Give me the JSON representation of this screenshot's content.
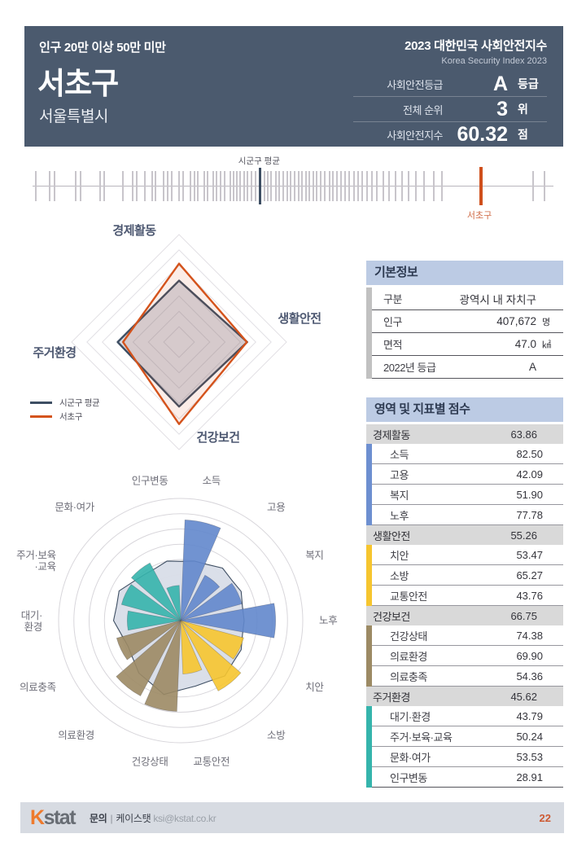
{
  "header": {
    "population_band": "인구 20만 이상 50만 미만",
    "report_title_ko": "2023 대한민국 사회안전지수",
    "report_title_en": "Korea Security Index 2023",
    "district": "서초구",
    "province": "서울특별시",
    "stats": [
      {
        "label": "사회안전등급",
        "value": "A",
        "unit": "등급"
      },
      {
        "label": "전체 순위",
        "value": "3",
        "unit": "위"
      },
      {
        "label": "사회안전지수",
        "value": "60.32",
        "unit": "점"
      }
    ]
  },
  "strip": {
    "avg_label": "시군구 평균",
    "district_label": "서초구",
    "avg_pos": 43.5,
    "district_pos": 85.8,
    "ticks": [
      0.4,
      3.2,
      4.0,
      8.2,
      9.0,
      12.8,
      13.6,
      17.2,
      19.0,
      19.8,
      21.4,
      22.8,
      23.5,
      25.0,
      25.8,
      26.5,
      28.0,
      28.8,
      30.2,
      30.9,
      31.6,
      32.8,
      33.5,
      34.6,
      35.2,
      36.0,
      36.7,
      37.8,
      38.4,
      39.0,
      39.7,
      40.5,
      41.1,
      41.9,
      42.6,
      44.3,
      45.0,
      45.7,
      46.5,
      47.2,
      48.0,
      48.8,
      49.4,
      50.1,
      50.9,
      51.6,
      52.4,
      53.0,
      53.7,
      54.4,
      55.2,
      56.0,
      56.8,
      57.5,
      58.3,
      59.0,
      59.8,
      60.6,
      61.5,
      62.3,
      63.1,
      64.0,
      65.0,
      66.0,
      67.2,
      68.3,
      69.5,
      70.8,
      72.0,
      73.5,
      75.0,
      76.8,
      78.5,
      96.0,
      98.2
    ]
  },
  "chart_data": [
    {
      "type": "radar",
      "categories": [
        "경제활동",
        "생활안전",
        "건강보건",
        "주거환경"
      ],
      "series": [
        {
          "name": "시군구 평균",
          "values": [
            50.0,
            55.5,
            52.5,
            50.0
          ],
          "color": "#3d4e63",
          "note": "estimated from pixels"
        },
        {
          "name": "서초구",
          "values": [
            63.86,
            55.26,
            66.75,
            45.62
          ],
          "color": "#d4531c"
        }
      ],
      "rmax": 87.5,
      "grid_levels": 7,
      "grid": "concentric diamonds, no radial lines",
      "legend_position": "bottom-left"
    },
    {
      "type": "polar-bar-rose",
      "categories": [
        "소득",
        "고용",
        "복지",
        "노후",
        "치안",
        "소방",
        "교통안전",
        "건강상태",
        "의료환경",
        "의료충족",
        "대기·환경",
        "주거·보육·교육",
        "문화·여가",
        "인구변동"
      ],
      "label_display": [
        "소득",
        "고용",
        "복지",
        "노후",
        "치안",
        "소방",
        "교통안전",
        "건강상태",
        "의료환경",
        "의료충족",
        "대기·|환경",
        "주거·보육|·교육",
        "문화·여가",
        "인구변동"
      ],
      "series": [
        {
          "name": "서초구",
          "values": [
            82.5,
            42.09,
            51.9,
            77.78,
            53.47,
            65.27,
            43.76,
            74.38,
            69.9,
            54.36,
            43.79,
            50.24,
            53.53,
            28.91
          ]
        },
        {
          "name": "시군구 평균",
          "values": [
            50,
            55,
            55,
            52,
            55,
            58,
            55,
            62,
            55,
            48,
            55,
            56,
            48,
            50
          ],
          "note": "gray blob, estimated from pixels"
        }
      ],
      "sector_group": [
        0,
        0,
        0,
        0,
        1,
        1,
        1,
        2,
        2,
        2,
        3,
        3,
        3,
        3
      ],
      "group_colors": [
        "#6287cc",
        "#f6c52f",
        "#9c8a64",
        "#35b4ac"
      ],
      "rmax": 100,
      "grid_levels": 8,
      "grid": "concentric circles"
    }
  ],
  "basic_info": {
    "title": "기본정보",
    "rows": [
      {
        "label": "구분",
        "value": "광역시 내 자치구",
        "unit": ""
      },
      {
        "label": "인구",
        "value": "407,672",
        "unit": "명"
      },
      {
        "label": "면적",
        "value": "47.0",
        "unit": "㎢"
      },
      {
        "label": "2022년 등급",
        "value": "A",
        "unit": ""
      }
    ]
  },
  "scores": {
    "title": "영역 및 지표별 점수",
    "groups": [
      {
        "name": "경제활동",
        "score": "63.86",
        "color": "#6d8fd0",
        "items": [
          {
            "name": "소득",
            "score": "82.50"
          },
          {
            "name": "고용",
            "score": "42.09"
          },
          {
            "name": "복지",
            "score": "51.90"
          },
          {
            "name": "노후",
            "score": "77.78"
          }
        ]
      },
      {
        "name": "생활안전",
        "score": "55.26",
        "color": "#f6c52f",
        "items": [
          {
            "name": "치안",
            "score": "53.47"
          },
          {
            "name": "소방",
            "score": "65.27"
          },
          {
            "name": "교통안전",
            "score": "43.76"
          }
        ]
      },
      {
        "name": "건강보건",
        "score": "66.75",
        "color": "#9c8a64",
        "items": [
          {
            "name": "건강상태",
            "score": "74.38"
          },
          {
            "name": "의료환경",
            "score": "69.90"
          },
          {
            "name": "의료충족",
            "score": "54.36"
          }
        ]
      },
      {
        "name": "주거환경",
        "score": "45.62",
        "color": "#35b4ac",
        "items": [
          {
            "name": "대기·환경",
            "score": "43.79"
          },
          {
            "name": "주거·보육·교육",
            "score": "50.24"
          },
          {
            "name": "문화·여가",
            "score": "53.53"
          },
          {
            "name": "인구변동",
            "score": "28.91"
          }
        ]
      }
    ]
  },
  "footer": {
    "logo_k": "K",
    "logo_stat": "stat",
    "contact_prefix": "문의",
    "contact_org": "케이스탯",
    "contact_email": "ksi@kstat.co.kr",
    "page": "22"
  },
  "colors": {
    "header_bg": "#4b5a6e",
    "avg_navy": "#3d4e63",
    "district_orange": "#d4531c",
    "table_title_bg": "#bccbe4",
    "category_bg": "#d9d9d9",
    "blob_fill": "#d9dee8",
    "footer_bg": "#d7dbe2",
    "accent_blue": "#6287cc",
    "accent_yellow": "#f6c52f",
    "accent_tan": "#9c8a64",
    "accent_teal": "#35b4ac"
  }
}
